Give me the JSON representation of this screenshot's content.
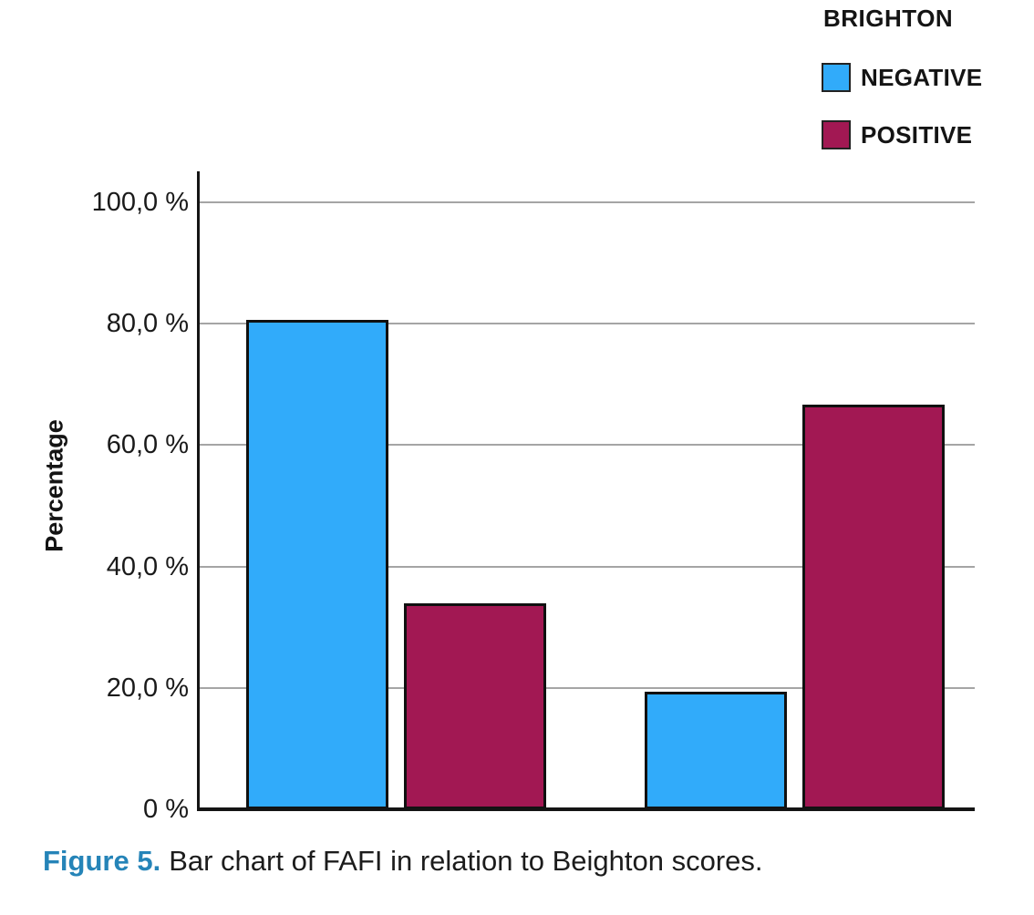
{
  "chart_data": {
    "type": "bar",
    "title": "",
    "xlabel": "",
    "ylabel": "Percentage",
    "categories": [
      "",
      ""
    ],
    "series": [
      {
        "name": "NEGATIVE",
        "color": "#31ABFA",
        "values": [
          80.7,
          19.3
        ]
      },
      {
        "name": "POSITIVE",
        "color": "#A21853",
        "values": [
          33.9,
          66.6
        ]
      }
    ],
    "ylim": [
      0,
      100
    ],
    "grid": true,
    "gridline_color": "#a5a5a5",
    "legend_position": "top-right",
    "legend_title": "BRIGHTON",
    "yticks": [
      {
        "label": "100,0 %",
        "value": 100
      },
      {
        "label": "80,0 %",
        "value": 80
      },
      {
        "label": "60,0 %",
        "value": 60
      },
      {
        "label": "40,0 %",
        "value": 40
      },
      {
        "label": "20,0 %",
        "value": 20
      },
      {
        "label": "0 %",
        "value": 0
      }
    ]
  },
  "caption": {
    "label": "Figure 5.",
    "text": "Bar chart of FAFI in relation to Beighton scores.",
    "label_color": "#2584B8"
  }
}
